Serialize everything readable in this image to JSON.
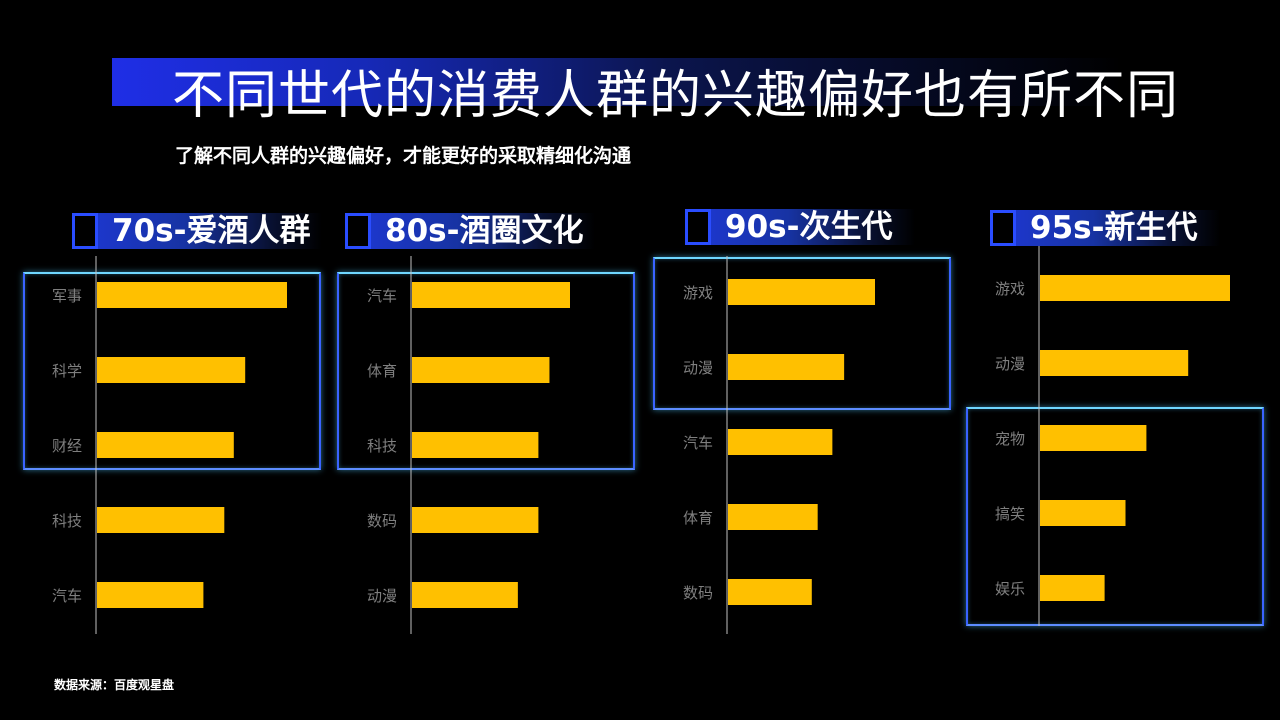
{
  "header": {
    "title": "不同世代的消费人群的兴趣偏好也有所不同",
    "subtitle": "了解不同人群的兴趣偏好，才能更好的采取精细化沟通"
  },
  "footer": {
    "source": "数据来源：百度观星盘"
  },
  "colors": {
    "bar": "#ffc000",
    "accent": "#1f2ee6",
    "axis": "#bfbfbf",
    "label": "#7f7f7f"
  },
  "chart_data": [
    {
      "type": "bar",
      "orientation": "horizontal",
      "title": "70s-爱酒人群",
      "categories": [
        "军事",
        "科学",
        "财经",
        "科技",
        "汽车"
      ],
      "values": [
        100,
        78,
        72,
        67,
        56
      ],
      "xlim": [
        0,
        100
      ],
      "highlighted_categories": [
        "军事",
        "科学",
        "财经"
      ]
    },
    {
      "type": "bar",
      "orientation": "horizontal",
      "title": "80s-酒圈文化",
      "categories": [
        "汽车",
        "体育",
        "科技",
        "数码",
        "动漫"
      ],
      "values": [
        100,
        87,
        80,
        80,
        67
      ],
      "xlim": [
        0,
        100
      ],
      "highlighted_categories": [
        "汽车",
        "体育",
        "科技"
      ]
    },
    {
      "type": "bar",
      "orientation": "horizontal",
      "title": "90s-次生代",
      "categories": [
        "游戏",
        "动漫",
        "汽车",
        "体育",
        "数码"
      ],
      "values": [
        100,
        79,
        71,
        61,
        57
      ],
      "xlim": [
        0,
        100
      ],
      "highlighted_categories": [
        "游戏",
        "动漫"
      ]
    },
    {
      "type": "bar",
      "orientation": "horizontal",
      "title": "95s-新生代",
      "categories": [
        "游戏",
        "动漫",
        "宠物",
        "搞笑",
        "娱乐"
      ],
      "values": [
        100,
        78,
        56,
        45,
        34
      ],
      "xlim": [
        0,
        100
      ],
      "highlighted_categories": [
        "宠物",
        "搞笑",
        "娱乐"
      ]
    }
  ]
}
